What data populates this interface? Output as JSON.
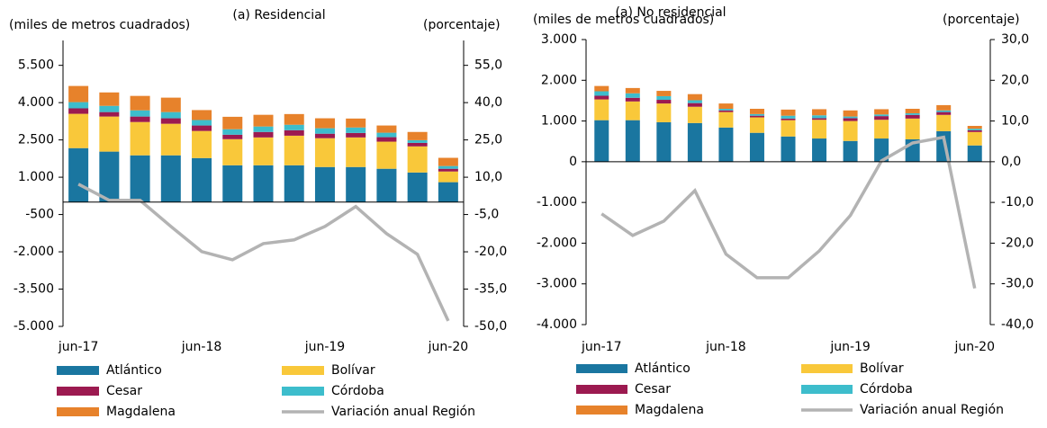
{
  "chart_data": [
    {
      "type": "bar",
      "stacked": true,
      "title": "(a) Residencial",
      "y_label": "(miles de metros cuadrados)",
      "y2_label": "(porcentaje)",
      "categories": [
        "jun-17",
        null,
        null,
        null,
        "jun-18",
        null,
        null,
        null,
        "jun-19",
        null,
        null,
        null,
        "jun-20"
      ],
      "ylim": [
        -5000,
        6500
      ],
      "yticks": [
        {
          "value": 5500,
          "label": "5.500"
        },
        {
          "value": 4000,
          "label": "4.000"
        },
        {
          "value": 2500,
          "label": "2.500"
        },
        {
          "value": 1000,
          "label": "1.000"
        },
        -500,
        {
          "value": -2000,
          "label": "-2.000"
        },
        {
          "value": -3500,
          "label": "-3.500"
        },
        {
          "value": -5000,
          "label": "-5.000"
        }
      ],
      "y2lim": [
        -50,
        65
      ],
      "y2ticks": [
        {
          "value": 55,
          "label": "55,0"
        },
        {
          "value": 40,
          "label": "40,0"
        },
        {
          "value": 25,
          "label": "25,0"
        },
        {
          "value": 10,
          "label": "10,0"
        },
        {
          "value": -5,
          "label": "-5,0"
        },
        {
          "value": -20,
          "label": "-20,0"
        },
        {
          "value": -35,
          "label": "-35,0"
        },
        {
          "value": -50,
          "label": "-50,0"
        }
      ],
      "series": [
        {
          "name": "Atlántico",
          "color": "#1a76a0",
          "values": [
            2170,
            2030,
            1880,
            1880,
            1770,
            1480,
            1480,
            1480,
            1410,
            1410,
            1340,
            1190,
            800
          ]
        },
        {
          "name": "Bolívar",
          "color": "#f9c83a",
          "values": [
            1380,
            1410,
            1340,
            1270,
            1090,
            1050,
            1120,
            1190,
            1160,
            1190,
            1090,
            1050,
            430
          ]
        },
        {
          "name": "Cesar",
          "color": "#9c1a50",
          "values": [
            220,
            180,
            220,
            220,
            220,
            180,
            220,
            220,
            180,
            180,
            180,
            140,
            110
          ]
        },
        {
          "name": "Córdoba",
          "color": "#3dbdcc",
          "values": [
            250,
            250,
            250,
            250,
            220,
            220,
            220,
            220,
            220,
            220,
            180,
            110,
            110
          ]
        },
        {
          "name": "Magdalena",
          "color": "#e7822b",
          "values": [
            650,
            540,
            580,
            580,
            400,
            500,
            470,
            430,
            400,
            360,
            290,
            330,
            330
          ]
        },
        {
          "name": "Variación anual Región",
          "color": "#b3b3b3",
          "type": "line",
          "axis": "y2",
          "values": [
            7.2,
            0.7,
            0.7,
            -9.8,
            -19.9,
            -23.2,
            -16.7,
            -15.2,
            -9.8,
            -1.8,
            -12.7,
            -21.0,
            -47.8
          ]
        }
      ]
    },
    {
      "type": "bar",
      "stacked": true,
      "title": "(a) No residencial",
      "y_label": "(miles de metros cuadrados)",
      "y2_label": "(porcentaje)",
      "categories": [
        "jun-17",
        null,
        null,
        null,
        "jun-18",
        null,
        null,
        null,
        "jun-19",
        null,
        null,
        null,
        "jun-20"
      ],
      "ylim": [
        -4000,
        3000
      ],
      "yticks": [
        {
          "value": 3000,
          "label": "3.000"
        },
        {
          "value": 2000,
          "label": "2.000"
        },
        {
          "value": 1000,
          "label": "1.000"
        },
        0,
        {
          "value": -1000,
          "label": "-1.000"
        },
        {
          "value": -2000,
          "label": "-2.000"
        },
        {
          "value": -3000,
          "label": "-3.000"
        },
        {
          "value": -4000,
          "label": "-4.000"
        }
      ],
      "y2lim": [
        -40,
        30
      ],
      "y2ticks": [
        {
          "value": 30,
          "label": "30,0"
        },
        {
          "value": 20,
          "label": "20,0"
        },
        {
          "value": 10,
          "label": "10,0"
        },
        {
          "value": 0,
          "label": "0,0"
        },
        {
          "value": -10,
          "label": "-10,0"
        },
        {
          "value": -20,
          "label": "-20,0"
        },
        {
          "value": -30,
          "label": "-30,0"
        },
        {
          "value": -40,
          "label": "-40,0"
        }
      ],
      "series": [
        {
          "name": "Atlántico",
          "color": "#1a76a0",
          "values": [
            1020,
            1020,
            970,
            950,
            840,
            710,
            620,
            570,
            510,
            570,
            550,
            750,
            400
          ]
        },
        {
          "name": "Bolívar",
          "color": "#f9c83a",
          "values": [
            510,
            460,
            460,
            400,
            380,
            380,
            400,
            460,
            490,
            460,
            510,
            400,
            330
          ]
        },
        {
          "name": "Cesar",
          "color": "#9c1a50",
          "values": [
            90,
            90,
            90,
            90,
            40,
            40,
            40,
            40,
            70,
            90,
            90,
            70,
            40
          ]
        },
        {
          "name": "Córdoba",
          "color": "#3dbdcc",
          "values": [
            110,
            110,
            90,
            70,
            40,
            40,
            70,
            70,
            40,
            40,
            40,
            40,
            40
          ]
        },
        {
          "name": "Magdalena",
          "color": "#e7822b",
          "values": [
            130,
            130,
            130,
            150,
            130,
            130,
            150,
            150,
            150,
            130,
            110,
            130,
            70
          ]
        },
        {
          "name": "Variación anual Región",
          "color": "#b3b3b3",
          "type": "line",
          "axis": "y2",
          "values": [
            -12.8,
            -18.1,
            -14.6,
            -7.1,
            -22.7,
            -28.5,
            -28.5,
            -21.9,
            -13.2,
            0.2,
            4.6,
            6.0,
            -31.1
          ]
        }
      ]
    }
  ]
}
